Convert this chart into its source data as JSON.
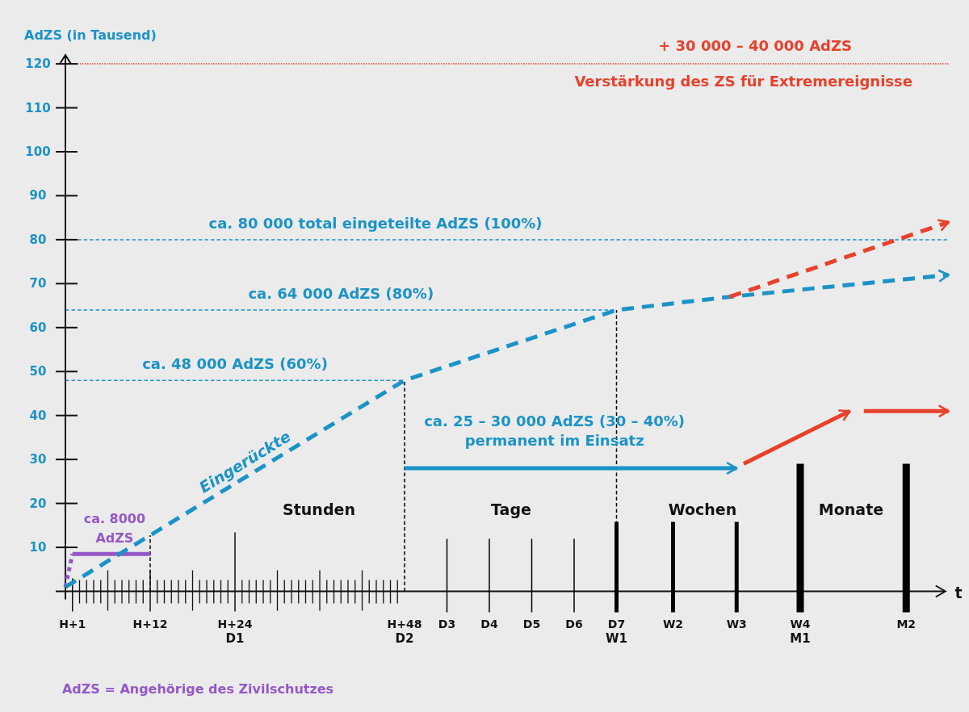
{
  "chart_data": {
    "type": "line",
    "ylabel": "AdZS (in Tausend)",
    "xlabel": "t",
    "categories": [
      null,
      "H+1",
      null,
      null,
      null,
      null,
      null,
      null,
      null,
      null,
      null,
      null,
      "H+12",
      null,
      null,
      null,
      null,
      null,
      null,
      null,
      null,
      null,
      null,
      null,
      "H+24\nD1",
      null,
      null,
      null,
      null,
      null,
      null,
      null,
      null,
      null,
      null,
      null,
      null,
      null,
      null,
      null,
      null,
      null,
      null,
      null,
      null,
      null,
      null,
      null,
      "H+48\nD2",
      null,
      null,
      null,
      null,
      null,
      "D3",
      null,
      null,
      null,
      null,
      null,
      "D4",
      null,
      null,
      null,
      null,
      null,
      "D5",
      null,
      null,
      null,
      null,
      null,
      "D6",
      null,
      null,
      null,
      null,
      null,
      "D7\nW1",
      null,
      null,
      null,
      null,
      null,
      null,
      null,
      "W2",
      null,
      null,
      null,
      null,
      null,
      null,
      null,
      null,
      "W3",
      null,
      null,
      null,
      null,
      null,
      null,
      null,
      null,
      "W4\nM1",
      null,
      null,
      null,
      null,
      null,
      null,
      null,
      null,
      null,
      null,
      null,
      null,
      null,
      null,
      "M2",
      null,
      null,
      null,
      null,
      null,
      null
    ],
    "ylim": [
      0,
      122
    ],
    "yticks": [
      10,
      20,
      30,
      40,
      50,
      60,
      70,
      80,
      90,
      100,
      110,
      120
    ],
    "series": [
      {
        "color": "#9457c8",
        "line_style": "dotted",
        "values": [
          1,
          8.5,
          null,
          null,
          null,
          null,
          null,
          null,
          null,
          null,
          null,
          null,
          null,
          null,
          null,
          null,
          null,
          null,
          null,
          null,
          null,
          null,
          null,
          null,
          null,
          null,
          null,
          null,
          null,
          null,
          null,
          null,
          null,
          null,
          null,
          null,
          null,
          null,
          null,
          null,
          null,
          null,
          null,
          null,
          null,
          null,
          null,
          null,
          null,
          null,
          null,
          null,
          null,
          null,
          null,
          null,
          null,
          null,
          null,
          null,
          null,
          null,
          null,
          null,
          null,
          null,
          null,
          null,
          null,
          null,
          null,
          null,
          null,
          null,
          null,
          null,
          null,
          null,
          null,
          null,
          null,
          null,
          null,
          null,
          null,
          null,
          null,
          null,
          null,
          null,
          null,
          null,
          null,
          null,
          null,
          null,
          null,
          null,
          null,
          null,
          null,
          null,
          null,
          null,
          null,
          null,
          null,
          null,
          null,
          null,
          null,
          null,
          null,
          null,
          null,
          null,
          null,
          null,
          null,
          null,
          null,
          null,
          null,
          null,
          null,
          null
        ]
      },
      {
        "name": "ca. 8000\nAdZS",
        "color": "#9457c8",
        "line_style": "solid",
        "values": [
          null,
          8.5,
          8.5,
          8.5,
          8.5,
          8.5,
          8.5,
          8.5,
          8.5,
          8.5,
          8.5,
          8.5,
          8.5,
          null,
          null,
          null,
          null,
          null,
          null,
          null,
          null,
          null,
          null,
          null,
          null,
          null,
          null,
          null,
          null,
          null,
          null,
          null,
          null,
          null,
          null,
          null,
          null,
          null,
          null,
          null,
          null,
          null,
          null,
          null,
          null,
          null,
          null,
          null,
          null,
          null,
          null,
          null,
          null,
          null,
          null,
          null,
          null,
          null,
          null,
          null,
          null,
          null,
          null,
          null,
          null,
          null,
          null,
          null,
          null,
          null,
          null,
          null,
          null,
          null,
          null,
          null,
          null,
          null,
          null,
          null,
          null,
          null,
          null,
          null,
          null,
          null,
          null,
          null,
          null,
          null,
          null,
          null,
          null,
          null,
          null,
          null,
          null,
          null,
          null,
          null,
          null,
          null,
          null,
          null,
          null,
          null,
          null,
          null,
          null,
          null,
          null,
          null,
          null,
          null,
          null,
          null,
          null,
          null,
          null,
          null,
          null,
          null,
          null,
          null,
          null,
          null
        ]
      },
      {
        "name": "Eingerückte",
        "color": "#1a93c8",
        "line_style": "dashed",
        "values": [
          1,
          null,
          null,
          null,
          null,
          null,
          null,
          null,
          null,
          null,
          null,
          null,
          null,
          null,
          null,
          null,
          null,
          null,
          null,
          null,
          null,
          null,
          null,
          null,
          null,
          null,
          null,
          null,
          null,
          null,
          null,
          null,
          null,
          null,
          null,
          null,
          null,
          null,
          null,
          null,
          null,
          null,
          null,
          null,
          null,
          null,
          null,
          null,
          48,
          null,
          null,
          null,
          null,
          null,
          null,
          null,
          null,
          null,
          null,
          null,
          null,
          null,
          null,
          null,
          null,
          null,
          null,
          null,
          null,
          null,
          null,
          null,
          null,
          null,
          null,
          null,
          null,
          null,
          64,
          null,
          null,
          null,
          null,
          null,
          null,
          null,
          null,
          null,
          null,
          null,
          null,
          null,
          null,
          null,
          67,
          null,
          null,
          null,
          null,
          null,
          null,
          null,
          null,
          null,
          null,
          null,
          null,
          null,
          null,
          null,
          null,
          null,
          null,
          null,
          null,
          null,
          null,
          null,
          null,
          null,
          null,
          null,
          null,
          null,
          null,
          72
        ]
      },
      {
        "color": "#e8412c",
        "line_style": "dashed",
        "values": [
          null,
          null,
          null,
          null,
          null,
          null,
          null,
          null,
          null,
          null,
          null,
          null,
          null,
          null,
          null,
          null,
          null,
          null,
          null,
          null,
          null,
          null,
          null,
          null,
          null,
          null,
          null,
          null,
          null,
          null,
          null,
          null,
          null,
          null,
          null,
          null,
          null,
          null,
          null,
          null,
          null,
          null,
          null,
          null,
          null,
          null,
          null,
          null,
          null,
          null,
          null,
          null,
          null,
          null,
          null,
          null,
          null,
          null,
          null,
          null,
          null,
          null,
          null,
          null,
          null,
          null,
          null,
          null,
          null,
          null,
          null,
          null,
          null,
          null,
          null,
          null,
          null,
          null,
          null,
          null,
          null,
          null,
          null,
          null,
          null,
          null,
          null,
          null,
          null,
          null,
          null,
          null,
          null,
          null,
          67,
          null,
          null,
          null,
          null,
          null,
          null,
          null,
          null,
          null,
          null,
          null,
          null,
          null,
          null,
          null,
          null,
          null,
          null,
          null,
          null,
          null,
          null,
          null,
          null,
          null,
          null,
          null,
          null,
          null,
          null,
          84
        ]
      },
      {
        "name": "ca. 25 – 30 000 AdZS (30 – 40%)\npermanent im Einsatz",
        "color": "#1a93c8",
        "line_style": "solid",
        "values": [
          null,
          null,
          null,
          null,
          null,
          null,
          null,
          null,
          null,
          null,
          null,
          null,
          null,
          null,
          null,
          null,
          null,
          null,
          null,
          null,
          null,
          null,
          null,
          null,
          null,
          null,
          null,
          null,
          null,
          null,
          null,
          null,
          null,
          null,
          null,
          null,
          null,
          null,
          null,
          null,
          null,
          null,
          null,
          null,
          null,
          null,
          null,
          null,
          28,
          null,
          null,
          null,
          null,
          null,
          null,
          null,
          null,
          null,
          null,
          null,
          null,
          null,
          null,
          null,
          null,
          null,
          null,
          null,
          null,
          null,
          null,
          null,
          null,
          null,
          null,
          null,
          null,
          null,
          null,
          null,
          null,
          null,
          null,
          null,
          null,
          null,
          null,
          null,
          null,
          null,
          null,
          null,
          null,
          null,
          null,
          28,
          null,
          null,
          null,
          null,
          null,
          null,
          null,
          null,
          null,
          null,
          null,
          null,
          null,
          null,
          null,
          null,
          null,
          null,
          null,
          null,
          null,
          null,
          null,
          null,
          null,
          null,
          null,
          null,
          null,
          null
        ]
      },
      {
        "color": "#e8412c",
        "line_style": "solid",
        "values": [
          null,
          null,
          null,
          null,
          null,
          null,
          null,
          null,
          null,
          null,
          null,
          null,
          null,
          null,
          null,
          null,
          null,
          null,
          null,
          null,
          null,
          null,
          null,
          null,
          null,
          null,
          null,
          null,
          null,
          null,
          null,
          null,
          null,
          null,
          null,
          null,
          null,
          null,
          null,
          null,
          null,
          null,
          null,
          null,
          null,
          null,
          null,
          null,
          null,
          null,
          null,
          null,
          null,
          null,
          null,
          null,
          null,
          null,
          null,
          null,
          null,
          null,
          null,
          null,
          null,
          null,
          null,
          null,
          null,
          null,
          null,
          null,
          null,
          null,
          null,
          null,
          null,
          null,
          null,
          null,
          null,
          null,
          null,
          null,
          null,
          null,
          null,
          null,
          null,
          null,
          null,
          null,
          null,
          null,
          null,
          null,
          29,
          null,
          null,
          null,
          null,
          null,
          null,
          null,
          null,
          null,
          null,
          null,
          null,
          null,
          null,
          41,
          null,
          null,
          null,
          null,
          null,
          null,
          null,
          null,
          null,
          null,
          null,
          null,
          null,
          null
        ]
      },
      {
        "color": "#e8412c",
        "line_style": "solid",
        "values": [
          null,
          null,
          null,
          null,
          null,
          null,
          null,
          null,
          null,
          null,
          null,
          null,
          null,
          null,
          null,
          null,
          null,
          null,
          null,
          null,
          null,
          null,
          null,
          null,
          null,
          null,
          null,
          null,
          null,
          null,
          null,
          null,
          null,
          null,
          null,
          null,
          null,
          null,
          null,
          null,
          null,
          null,
          null,
          null,
          null,
          null,
          null,
          null,
          null,
          null,
          null,
          null,
          null,
          null,
          null,
          null,
          null,
          null,
          null,
          null,
          null,
          null,
          null,
          null,
          null,
          null,
          null,
          null,
          null,
          null,
          null,
          null,
          null,
          null,
          null,
          null,
          null,
          null,
          null,
          null,
          null,
          null,
          null,
          null,
          null,
          null,
          null,
          null,
          null,
          null,
          null,
          null,
          null,
          null,
          null,
          null,
          null,
          null,
          null,
          null,
          null,
          null,
          null,
          null,
          null,
          null,
          null,
          null,
          null,
          null,
          null,
          null,
          null,
          41,
          null,
          null,
          null,
          null,
          null,
          null,
          null,
          null,
          null,
          null,
          null,
          41
        ]
      }
    ],
    "ref_lines": [
      {
        "axis": "y",
        "value": 120,
        "label": "+ 30 000 – 40 000 AdZS\nVerstärkung des ZS für Extremereignisse",
        "color": "#e8412c",
        "line_style": "dotted"
      },
      {
        "axis": "y",
        "value": 80,
        "label": "ca. 80 000 total eingeteilte AdZS (100%)",
        "color": "#1a93c8",
        "line_style": "dashed"
      },
      {
        "axis": "y",
        "value": 64,
        "label": "ca. 64 000 AdZS (80%)",
        "color": "#1a93c8",
        "line_style": "dashed"
      },
      {
        "axis": "y",
        "value": 48,
        "label": "ca. 48 000 AdZS (60%)",
        "color": "#1a93c8",
        "line_style": "dashed"
      },
      {
        "axis": "x",
        "value": "H+12",
        "color": "#000000",
        "line_style": "dashed"
      },
      {
        "axis": "x",
        "value": "H+48\nD2",
        "color": "#000000",
        "line_style": "dashed"
      },
      {
        "axis": "x",
        "value": "D7\nW1",
        "color": "#000000",
        "line_style": "dashed"
      }
    ],
    "annotations": [
      "Stunden",
      "Tage",
      "Wochen",
      "Monate",
      "AdZS = Angehörige des Zivilschutzes"
    ]
  }
}
